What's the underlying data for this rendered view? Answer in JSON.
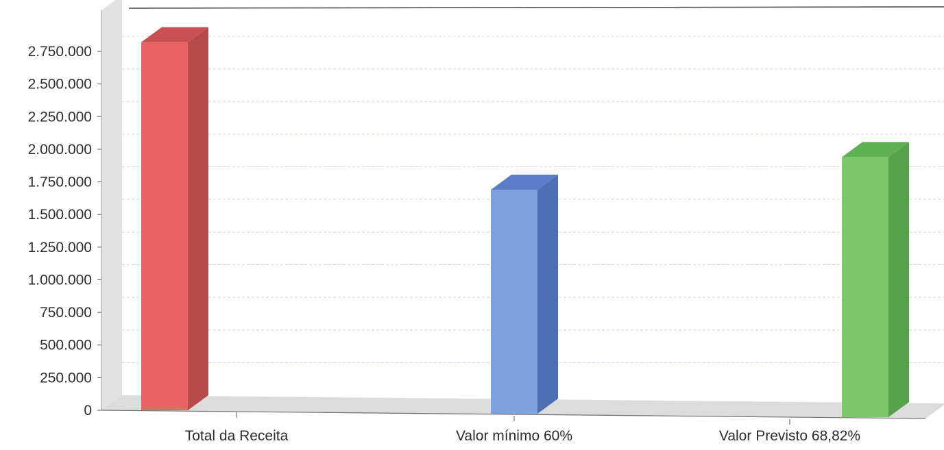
{
  "chart_data": {
    "type": "bar",
    "title": "",
    "xlabel": "",
    "ylabel": "",
    "categories": [
      "Total da Receita",
      "Valor mínimo 60%",
      "Valor Previsto 68,82%"
    ],
    "values": [
      2820000,
      1690000,
      1940000
    ],
    "ylim": [
      0,
      2750000
    ],
    "yticks": [
      0,
      250000,
      500000,
      750000,
      1000000,
      1250000,
      1500000,
      1750000,
      2000000,
      2250000,
      2500000,
      2750000
    ],
    "ytick_labels": [
      "0",
      "250.000",
      "500.000",
      "750.000",
      "1.000.000",
      "1.250.000",
      "1.500.000",
      "1.750.000",
      "2.000.000",
      "2.250.000",
      "2.500.000",
      "2.750.000"
    ],
    "grid": true,
    "style": "3d-bar",
    "colors": {
      "bars_front": [
        "#e96565",
        "#7ea2e0",
        "#7dc86b"
      ],
      "bars_side": [
        "#b94a4a",
        "#4f6fb5",
        "#55a24a"
      ],
      "bars_top": [
        "#c85050",
        "#5b7dc8",
        "#5fb052"
      ],
      "grid": "#c9d6ec",
      "walls": "#dcdcdc"
    }
  }
}
